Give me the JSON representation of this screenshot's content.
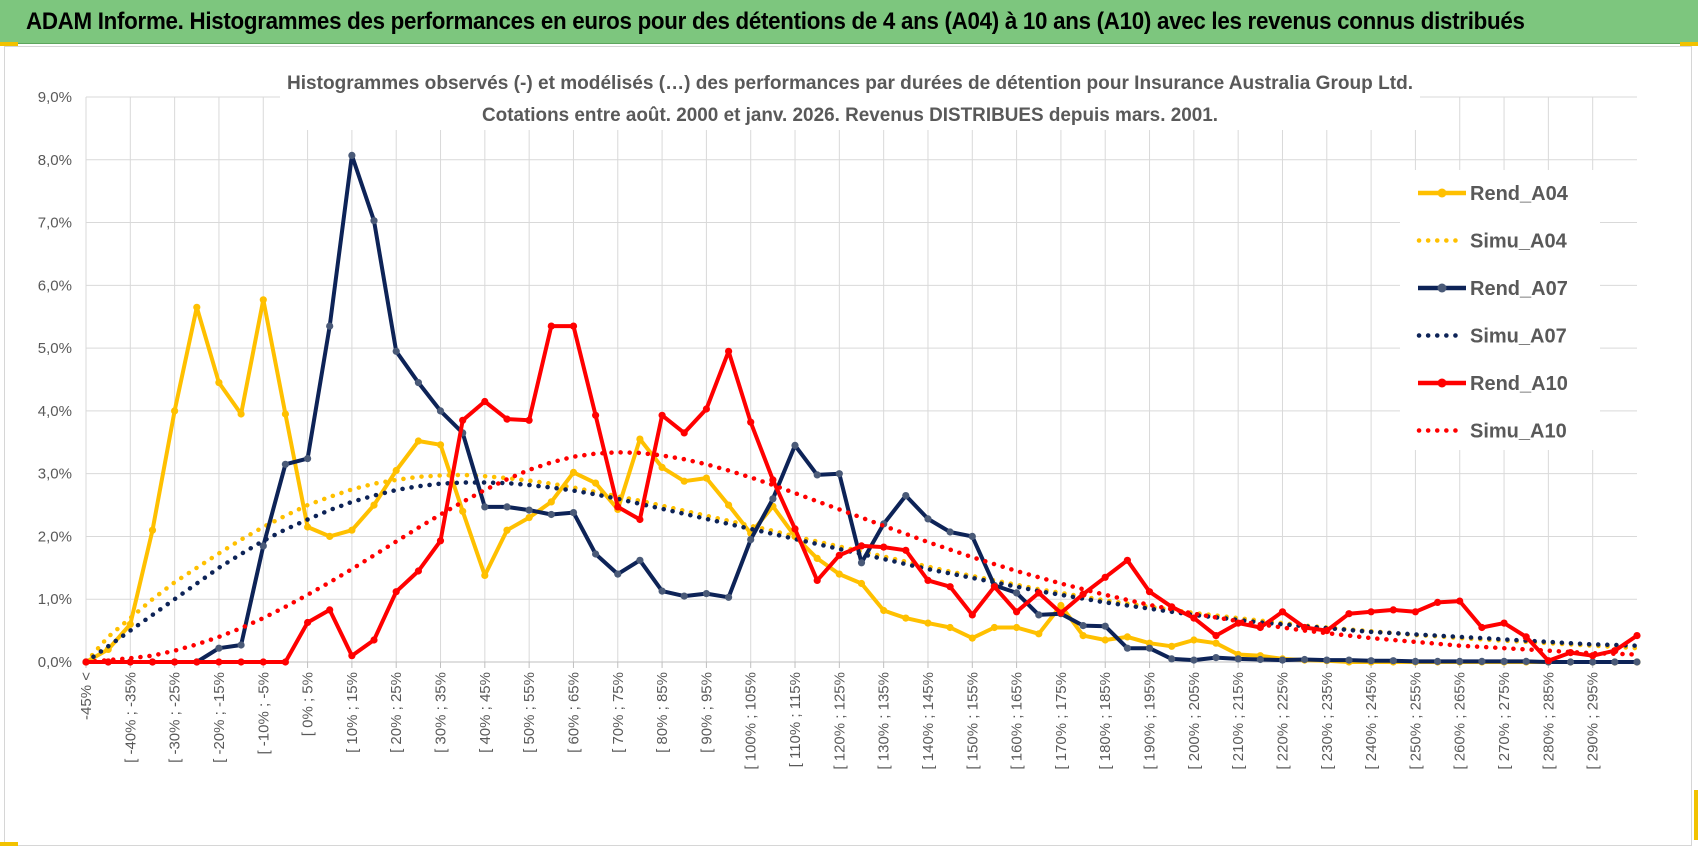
{
  "banner": {
    "title": "ADAM Informe. Histogrammes des performances en euros pour des détentions de 4 ans (A04) à 10 ans (A10) avec les revenus connus distribués"
  },
  "colors": {
    "banner_bg": "#7dc67e",
    "A04": "#ffc000",
    "A07": "#0d2357",
    "A10": "#ff0000",
    "grid": "#d9d9d9",
    "text": "#595959"
  },
  "chart_data": {
    "type": "line",
    "title": "Histogrammes observés (-) et modélisés (…)  des performances par durées de détention pour Insurance Australia Group Ltd.",
    "subtitle": "Cotations entre août. 2000 et janv. 2026. Revenus DISTRIBUES depuis mars. 2001.",
    "xlabel": "",
    "ylabel": "",
    "ylim": [
      0,
      9
    ],
    "y_ticks": [
      "0,0%",
      "1,0%",
      "2,0%",
      "3,0%",
      "4,0%",
      "5,0%",
      "6,0%",
      "7,0%",
      "8,0%",
      "9,0%"
    ],
    "grid": true,
    "legend_position": "right",
    "x_tick_labels": [
      "-45% <",
      "[ -40% ; -35%",
      "[ -30% ; -25%",
      "[ -20% ; -15%",
      "[ -10% ; -5%",
      "[ 0% ; 5%",
      "[ 10% ; 15%",
      "[ 20% ; 25%",
      "[ 30% ; 35%",
      "[ 40% ; 45%",
      "[ 50% ; 55%",
      "[ 60% ; 65%",
      "[ 70% ; 75%",
      "[ 80% ; 85%",
      "[ 90% ; 95%",
      "[ 100% ; 105%",
      "[ 110% ; 115%",
      "[ 120% ; 125%",
      "[ 130% ; 135%",
      "[ 140% ; 145%",
      "[ 150% ; 155%",
      "[ 160% ; 165%",
      "[ 170% ; 175%",
      "[ 180% ; 185%",
      "[ 190% ; 195%",
      "[ 200% ; 205%",
      "[ 210% ; 215%",
      "[ 220% ; 225%",
      "[ 230% ; 235%",
      "[ 240% ; 245%",
      "[ 250% ; 255%",
      "[ 260% ; 265%",
      "[ 270% ; 275%",
      "[ 280% ; 285%",
      "[ 290% ; 295%"
    ],
    "series": [
      {
        "name": "Rend_A04",
        "style": "solid",
        "color": "#ffc000",
        "values": [
          0.0,
          0.2,
          0.6,
          2.1,
          4.0,
          5.65,
          4.45,
          3.95,
          5.77,
          3.95,
          2.15,
          2.0,
          2.1,
          2.5,
          3.05,
          3.52,
          3.46,
          2.4,
          1.38,
          2.1,
          2.3,
          2.55,
          3.02,
          2.85,
          2.43,
          3.55,
          3.1,
          2.88,
          2.93,
          2.5,
          2.05,
          2.48,
          2.0,
          1.65,
          1.4,
          1.25,
          0.82,
          0.7,
          0.62,
          0.55,
          0.38,
          0.55,
          0.55,
          0.45,
          0.9,
          0.42,
          0.35,
          0.4,
          0.3,
          0.25,
          0.35,
          0.3,
          0.12,
          0.1,
          0.05,
          0.03,
          0.02,
          0.0,
          0.0,
          0.0,
          0.0,
          0.0,
          0.0,
          0.0,
          0.0,
          0.0,
          0.0,
          0.0,
          0.0,
          0.0,
          0.0
        ]
      },
      {
        "name": "Simu_A04",
        "style": "dotted",
        "color": "#ffc000",
        "values": [
          0.0,
          0.4,
          0.7,
          1.0,
          1.27,
          1.5,
          1.73,
          1.95,
          2.15,
          2.33,
          2.5,
          2.63,
          2.75,
          2.84,
          2.9,
          2.95,
          2.97,
          2.98,
          2.96,
          2.93,
          2.89,
          2.84,
          2.78,
          2.71,
          2.64,
          2.57,
          2.49,
          2.41,
          2.33,
          2.25,
          2.17,
          2.09,
          2.0,
          1.92,
          1.84,
          1.76,
          1.68,
          1.6,
          1.52,
          1.44,
          1.37,
          1.3,
          1.23,
          1.16,
          1.1,
          1.04,
          0.98,
          0.93,
          0.88,
          0.83,
          0.78,
          0.74,
          0.7,
          0.66,
          0.62,
          0.58,
          0.55,
          0.52,
          0.49,
          0.46,
          0.43,
          0.41,
          0.38,
          0.36,
          0.34,
          0.32,
          0.3,
          0.28,
          0.26,
          0.24,
          0.22
        ]
      },
      {
        "name": "Rend_A07",
        "style": "solid",
        "color": "#0d2357",
        "values": [
          0.0,
          0.0,
          0.0,
          0.0,
          0.0,
          0.0,
          0.22,
          0.27,
          1.85,
          3.15,
          3.24,
          5.35,
          8.07,
          7.03,
          4.95,
          4.45,
          4.0,
          3.65,
          2.47,
          2.47,
          2.42,
          2.35,
          2.38,
          1.72,
          1.4,
          1.62,
          1.13,
          1.05,
          1.09,
          1.03,
          1.95,
          2.6,
          3.45,
          2.98,
          3.0,
          1.58,
          2.2,
          2.65,
          2.28,
          2.07,
          2.0,
          1.22,
          1.1,
          0.75,
          0.77,
          0.58,
          0.57,
          0.22,
          0.22,
          0.05,
          0.03,
          0.07,
          0.05,
          0.04,
          0.03,
          0.04,
          0.03,
          0.03,
          0.02,
          0.02,
          0.01,
          0.01,
          0.01,
          0.01,
          0.01,
          0.01,
          0.0,
          0.0,
          0.0,
          0.0,
          0.0
        ]
      },
      {
        "name": "Simu_A07",
        "style": "dotted",
        "color": "#0d2357",
        "values": [
          0.0,
          0.25,
          0.5,
          0.75,
          1.0,
          1.25,
          1.5,
          1.72,
          1.93,
          2.11,
          2.27,
          2.42,
          2.55,
          2.65,
          2.74,
          2.8,
          2.84,
          2.86,
          2.86,
          2.85,
          2.82,
          2.78,
          2.73,
          2.67,
          2.6,
          2.52,
          2.44,
          2.36,
          2.28,
          2.2,
          2.12,
          2.04,
          1.96,
          1.88,
          1.8,
          1.72,
          1.64,
          1.56,
          1.48,
          1.41,
          1.34,
          1.27,
          1.2,
          1.13,
          1.07,
          1.01,
          0.95,
          0.9,
          0.85,
          0.8,
          0.75,
          0.71,
          0.67,
          0.63,
          0.6,
          0.57,
          0.54,
          0.51,
          0.48,
          0.46,
          0.44,
          0.42,
          0.4,
          0.38,
          0.36,
          0.34,
          0.32,
          0.3,
          0.28,
          0.27,
          0.26
        ]
      },
      {
        "name": "Rend_A10",
        "style": "solid",
        "color": "#ff0000",
        "values": [
          0.0,
          0.0,
          0.0,
          0.0,
          0.0,
          0.0,
          0.0,
          0.0,
          0.0,
          0.0,
          0.63,
          0.83,
          0.1,
          0.35,
          1.12,
          1.45,
          1.93,
          3.85,
          4.15,
          3.87,
          3.85,
          5.35,
          5.35,
          3.93,
          2.47,
          2.27,
          3.93,
          3.65,
          4.03,
          4.95,
          3.82,
          2.9,
          2.12,
          1.3,
          1.7,
          1.85,
          1.83,
          1.78,
          1.3,
          1.2,
          0.75,
          1.2,
          0.8,
          1.1,
          0.78,
          1.08,
          1.35,
          1.62,
          1.12,
          0.88,
          0.7,
          0.42,
          0.62,
          0.55,
          0.8,
          0.55,
          0.5,
          0.77,
          0.8,
          0.83,
          0.8,
          0.95,
          0.97,
          0.55,
          0.62,
          0.4,
          0.02,
          0.15,
          0.1,
          0.18,
          0.42
        ]
      },
      {
        "name": "Simu_A10",
        "style": "dotted",
        "color": "#ff0000",
        "values": [
          0.0,
          0.03,
          0.06,
          0.1,
          0.18,
          0.28,
          0.4,
          0.54,
          0.7,
          0.88,
          1.07,
          1.27,
          1.48,
          1.7,
          1.92,
          2.14,
          2.35,
          2.55,
          2.74,
          2.91,
          3.06,
          3.18,
          3.27,
          3.32,
          3.34,
          3.33,
          3.29,
          3.23,
          3.15,
          3.05,
          2.94,
          2.82,
          2.69,
          2.56,
          2.43,
          2.3,
          2.17,
          2.04,
          1.91,
          1.79,
          1.67,
          1.56,
          1.45,
          1.35,
          1.25,
          1.16,
          1.07,
          0.99,
          0.91,
          0.84,
          0.77,
          0.71,
          0.65,
          0.6,
          0.55,
          0.5,
          0.46,
          0.42,
          0.38,
          0.35,
          0.32,
          0.29,
          0.26,
          0.24,
          0.22,
          0.2,
          0.18,
          0.16,
          0.14,
          0.13,
          0.12
        ]
      }
    ]
  }
}
